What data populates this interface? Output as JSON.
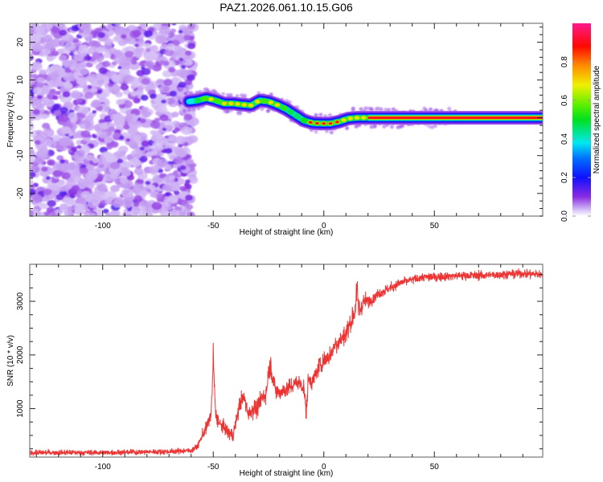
{
  "chart_data": [
    {
      "type": "heatmap",
      "title": "PAZ1.2026.061.10.15.G06",
      "xlabel": "Height of straight line (km)",
      "ylabel": "Frequency (Hz)",
      "xlim": [
        -133,
        99
      ],
      "ylim": [
        -26,
        25
      ],
      "xticks": [
        -100,
        -50,
        0,
        50
      ],
      "xtick_labels": [
        "-100",
        "-50",
        "0",
        "50"
      ],
      "yticks": [
        -20,
        -10,
        0,
        10,
        20
      ],
      "ytick_labels": [
        "-20",
        "-10",
        "0",
        "10",
        "20"
      ],
      "grid": false,
      "noise_region": {
        "x_range": [
          -133,
          -60
        ],
        "description": "random low-amplitude noise (0.0-0.2)"
      },
      "signal_ridge": {
        "x": [
          -61,
          -57,
          -53,
          -49,
          -45,
          -41,
          -37,
          -33,
          -29,
          -25,
          -21,
          -17,
          -13,
          -9,
          -5,
          -1,
          3,
          7,
          11,
          15,
          19,
          23,
          99
        ],
        "frequency_hz": [
          4.3,
          4.6,
          5.2,
          4.6,
          3.8,
          3.8,
          3.5,
          3.3,
          4.6,
          4.3,
          3.4,
          2.3,
          0.8,
          -0.7,
          -1.4,
          -1.5,
          -1.5,
          -1.0,
          -0.2,
          0.0,
          0.0,
          0.0,
          0.0
        ],
        "peak_amplitude": [
          0.35,
          0.45,
          0.65,
          0.6,
          0.75,
          0.85,
          0.6,
          0.7,
          0.75,
          0.7,
          0.6,
          0.55,
          0.5,
          0.6,
          0.9,
          0.95,
          0.95,
          0.8,
          0.75,
          0.8,
          0.85,
          0.95,
          0.95
        ]
      },
      "colorbar": {
        "label": "Normalized spectral amplitude",
        "ticks": [
          "0.0",
          "0.2",
          "0.4",
          "0.6",
          "0.8"
        ],
        "tick_values": [
          0.0,
          0.2,
          0.4,
          0.6,
          0.8
        ],
        "range": [
          0.0,
          1.0
        ],
        "colors": [
          "#f2e9ff",
          "#8a2be2",
          "#0000ff",
          "#00e5ff",
          "#00e000",
          "#f0f000",
          "#ff8000",
          "#ff0000",
          "#ff1a8c"
        ]
      }
    },
    {
      "type": "line",
      "xlabel": "Height of straight line (km)",
      "ylabel": "SNR (10 * v/v)",
      "xlim": [
        -133,
        99
      ],
      "ylim": [
        96,
        3690
      ],
      "xticks": [
        -100,
        -50,
        0,
        50
      ],
      "xtick_labels": [
        "-100",
        "-50",
        "0",
        "50"
      ],
      "yticks": [
        1000,
        2000,
        3000
      ],
      "ytick_labels": [
        "1000",
        "2000",
        "3000"
      ],
      "grid": false,
      "line_color": "#ee3333",
      "series": [
        {
          "name": "SNR",
          "x": [
            -133,
            -100,
            -70,
            -60,
            -57,
            -55,
            -53,
            -51,
            -50.5,
            -50,
            -49,
            -47,
            -45,
            -43,
            -41,
            -38,
            -36,
            -34,
            -32,
            -30,
            -28,
            -26,
            -25,
            -24,
            -22,
            -20,
            -18,
            -15,
            -12,
            -9,
            -8,
            -7,
            -5,
            -2,
            0,
            3,
            5,
            8,
            10,
            12,
            14,
            15,
            16,
            18,
            20,
            25,
            30,
            35,
            40,
            45,
            50,
            60,
            70,
            80,
            90,
            99
          ],
          "mean": [
            180,
            180,
            200,
            220,
            300,
            500,
            650,
            900,
            1300,
            2000,
            900,
            700,
            650,
            550,
            500,
            1100,
            1200,
            900,
            1000,
            1000,
            1200,
            1300,
            1700,
            1800,
            1350,
            1300,
            1350,
            1400,
            1500,
            1400,
            900,
            1550,
            1500,
            1800,
            1900,
            2000,
            2200,
            2300,
            2400,
            2600,
            2800,
            3200,
            2800,
            3000,
            3000,
            3150,
            3250,
            3350,
            3400,
            3450,
            3450,
            3480,
            3480,
            3500,
            3520,
            3500
          ],
          "noise_amplitude": [
            60,
            60,
            60,
            60,
            80,
            120,
            140,
            160,
            200,
            250,
            180,
            160,
            150,
            150,
            150,
            200,
            220,
            200,
            200,
            200,
            220,
            240,
            260,
            260,
            220,
            200,
            200,
            200,
            200,
            200,
            200,
            200,
            200,
            220,
            220,
            220,
            240,
            260,
            260,
            260,
            280,
            300,
            300,
            200,
            150,
            120,
            110,
            100,
            100,
            100,
            100,
            100,
            100,
            100,
            100,
            100
          ]
        }
      ]
    }
  ]
}
